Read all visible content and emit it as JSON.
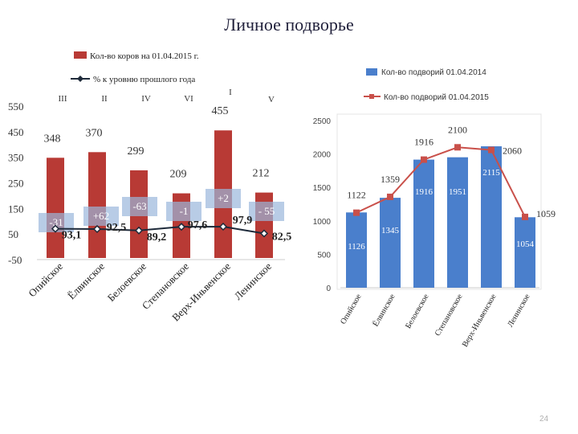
{
  "page": {
    "title": "Личное подворье",
    "page_number": "24"
  },
  "chart_data": [
    {
      "type": "bar",
      "name": "cows",
      "categories": [
        "Опийское",
        "Ёлвинское",
        "Белоевское",
        "Степановское",
        "Верх-Иньвенское",
        "Ленинское"
      ],
      "roman_labels": [
        "III",
        "II",
        "IV",
        "VI",
        "I",
        "V"
      ],
      "yticks": [
        "550",
        "450",
        "350",
        "250",
        "150",
        "50",
        "-50"
      ],
      "ylim": [
        -50,
        550
      ],
      "series": [
        {
          "name": "Кол-во коров на 01.04.2015 г.",
          "type": "bar",
          "color": "#b83a35",
          "values": [
            348,
            370,
            299,
            209,
            455,
            212
          ],
          "labels": [
            "348",
            "370",
            "299",
            "209",
            "455",
            "212"
          ]
        },
        {
          "name": "% к уровню прошлого года",
          "type": "line",
          "color": "#1e2a3a",
          "values": [
            93.1,
            92.5,
            89.2,
            97.6,
            97.9,
            82.5
          ],
          "labels": [
            "93,1",
            "92,5",
            "89,2",
            "97,6",
            "97,9",
            "82,5"
          ]
        }
      ],
      "change_labels": [
        "-31",
        "+62",
        "-63",
        "-1",
        "+2",
        "- 55"
      ]
    },
    {
      "type": "bar",
      "name": "households",
      "categories": [
        "Опийское",
        "Ёлвинское",
        "Белоевское",
        "Степановское",
        "Верх-Иньвенское",
        "Ленинское"
      ],
      "yticks": [
        "2500",
        "2000",
        "1500",
        "1000",
        "500",
        "0"
      ],
      "ylim": [
        0,
        2500
      ],
      "series": [
        {
          "name": "Кол-во подворий 01.04.2014",
          "type": "bar",
          "color": "#4a7fcc",
          "values": [
            1126,
            1345,
            1916,
            1951,
            2115,
            1054
          ],
          "labels": [
            "1126",
            "1345",
            "1916",
            "1951",
            "2115",
            "1054"
          ]
        },
        {
          "name": "Кол-во подворий 01.04.2015",
          "type": "line",
          "color": "#c9504a",
          "values": [
            1122,
            1359,
            1916,
            2100,
            2060,
            1059
          ],
          "labels": [
            "1122",
            "1359",
            "1916",
            "2100",
            "2060",
            "1059"
          ]
        }
      ]
    }
  ]
}
